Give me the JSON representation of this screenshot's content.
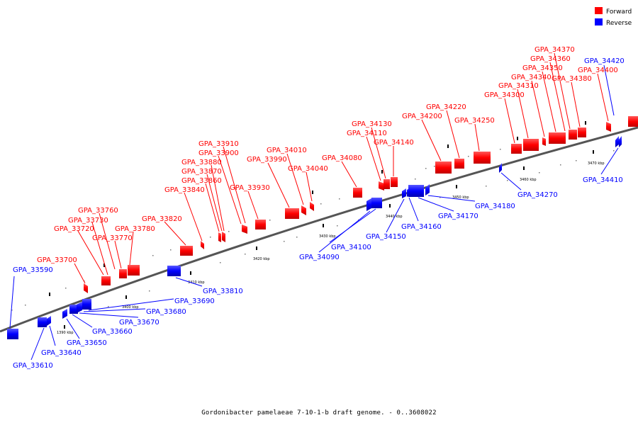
{
  "caption": "Gordonibacter pamelaeae 7-10-1-b draft genome. - 0..3608022",
  "legend": [
    {
      "label": "Forward",
      "color": "#ff0000"
    },
    {
      "label": "Reverse",
      "color": "#0000ff"
    }
  ],
  "colors": {
    "forward": "#ff0000",
    "reverse": "#0000ff",
    "forward_dark": "#b00000",
    "reverse_dark": "#0000a0"
  },
  "ticks": [
    "1390 kbp",
    "3400 kbp",
    "3410 kbp",
    "3420 kbp",
    "3430 kbp",
    "3440 kbp",
    "3450 kbp",
    "3460 kbp",
    "3470 kbp"
  ],
  "forward_labels": [
    "GPA_33700",
    "GPA_33720",
    "GPA_33730",
    "GPA_33760",
    "GPA_33770",
    "GPA_33780",
    "GPA_33820",
    "GPA_33840",
    "GPA_33860",
    "GPA_33870",
    "GPA_33880",
    "GPA_33900",
    "GPA_33910",
    "GPA_33930",
    "GPA_33990",
    "GPA_34010",
    "GPA_34040",
    "GPA_34080",
    "GPA_34110",
    "GPA_34130",
    "GPA_34140",
    "GPA_34200",
    "GPA_34220",
    "GPA_34250",
    "GPA_34300",
    "GPA_34310",
    "GPA_34340",
    "GPA_34350",
    "GPA_34360",
    "GPA_34370",
    "GPA_34380",
    "GPA_34400"
  ],
  "reverse_labels": [
    "GPA_33590",
    "GPA_33610",
    "GPA_33640",
    "GPA_33650",
    "GPA_33660",
    "GPA_33670",
    "GPA_33680",
    "GPA_33690",
    "GPA_33810",
    "GPA_34090",
    "GPA_34100",
    "GPA_34150",
    "GPA_34160",
    "GPA_34170",
    "GPA_34180",
    "GPA_34270",
    "GPA_34410",
    "GPA_34420"
  ]
}
